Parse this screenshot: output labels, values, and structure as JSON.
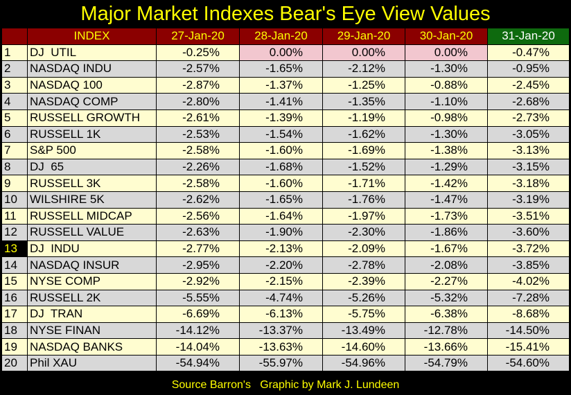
{
  "title": "Major Market Indexes Bear's Eye View Values",
  "footer": "Source Barron's   Graphic by Mark J. Lundeen",
  "colors": {
    "background": "#000000",
    "header_bg": "#8b0000",
    "header_text": "#ffff00",
    "highlight_header_bg": "#0e6a0e",
    "odd_row": "#fffdd0",
    "even_row": "#d8d8d8",
    "zero_cell": "#f2c7cf"
  },
  "chart_data": {
    "type": "table",
    "title": "Major Market Indexes Bear's Eye View Values",
    "columns": [
      "",
      "INDEX",
      "27-Jan-20",
      "28-Jan-20",
      "29-Jan-20",
      "30-Jan-20",
      "31-Jan-20"
    ],
    "highlighted_column": "31-Jan-20",
    "highlighted_rank": "13",
    "rows": [
      {
        "rank": "1",
        "index": "DJ  UTIL",
        "values": [
          "-0.25%",
          "0.00%",
          "0.00%",
          "0.00%",
          "-0.47%"
        ]
      },
      {
        "rank": "2",
        "index": "NASDAQ INDU",
        "values": [
          "-2.57%",
          "-1.65%",
          "-2.12%",
          "-1.30%",
          "-0.95%"
        ]
      },
      {
        "rank": "3",
        "index": "NASDAQ 100",
        "values": [
          "-2.87%",
          "-1.37%",
          "-1.25%",
          "-0.88%",
          "-2.45%"
        ]
      },
      {
        "rank": "4",
        "index": "NASDAQ COMP",
        "values": [
          "-2.80%",
          "-1.41%",
          "-1.35%",
          "-1.10%",
          "-2.68%"
        ]
      },
      {
        "rank": "5",
        "index": "RUSSELL GROWTH",
        "values": [
          "-2.61%",
          "-1.39%",
          "-1.19%",
          "-0.98%",
          "-2.73%"
        ]
      },
      {
        "rank": "6",
        "index": "RUSSELL 1K",
        "values": [
          "-2.53%",
          "-1.54%",
          "-1.62%",
          "-1.30%",
          "-3.05%"
        ]
      },
      {
        "rank": "7",
        "index": "S&P 500",
        "values": [
          "-2.58%",
          "-1.60%",
          "-1.69%",
          "-1.38%",
          "-3.13%"
        ]
      },
      {
        "rank": "8",
        "index": "DJ  65",
        "values": [
          "-2.26%",
          "-1.68%",
          "-1.52%",
          "-1.29%",
          "-3.15%"
        ]
      },
      {
        "rank": "9",
        "index": "RUSSELL 3K",
        "values": [
          "-2.58%",
          "-1.60%",
          "-1.71%",
          "-1.42%",
          "-3.18%"
        ]
      },
      {
        "rank": "10",
        "index": "WILSHIRE 5K",
        "values": [
          "-2.62%",
          "-1.65%",
          "-1.76%",
          "-1.47%",
          "-3.19%"
        ]
      },
      {
        "rank": "11",
        "index": "RUSSELL MIDCAP",
        "values": [
          "-2.56%",
          "-1.64%",
          "-1.97%",
          "-1.73%",
          "-3.51%"
        ]
      },
      {
        "rank": "12",
        "index": "RUSSELL VALUE",
        "values": [
          "-2.63%",
          "-1.90%",
          "-2.30%",
          "-1.86%",
          "-3.60%"
        ]
      },
      {
        "rank": "13",
        "index": "DJ  INDU",
        "values": [
          "-2.77%",
          "-2.13%",
          "-2.09%",
          "-1.67%",
          "-3.72%"
        ]
      },
      {
        "rank": "14",
        "index": "NASDAQ INSUR",
        "values": [
          "-2.95%",
          "-2.20%",
          "-2.78%",
          "-2.08%",
          "-3.85%"
        ]
      },
      {
        "rank": "15",
        "index": "NYSE COMP",
        "values": [
          "-2.92%",
          "-2.15%",
          "-2.39%",
          "-2.27%",
          "-4.02%"
        ]
      },
      {
        "rank": "16",
        "index": "RUSSELL 2K",
        "values": [
          "-5.55%",
          "-4.74%",
          "-5.26%",
          "-5.32%",
          "-7.28%"
        ]
      },
      {
        "rank": "17",
        "index": "DJ  TRAN",
        "values": [
          "-6.69%",
          "-6.13%",
          "-5.75%",
          "-6.38%",
          "-8.68%"
        ]
      },
      {
        "rank": "18",
        "index": "NYSE FINAN",
        "values": [
          "-14.12%",
          "-13.37%",
          "-13.49%",
          "-12.78%",
          "-14.50%"
        ]
      },
      {
        "rank": "19",
        "index": "NASDAQ BANKS",
        "values": [
          "-14.04%",
          "-13.63%",
          "-14.60%",
          "-13.66%",
          "-15.41%"
        ]
      },
      {
        "rank": "20",
        "index": "Phil XAU",
        "values": [
          "-54.94%",
          "-55.97%",
          "-54.96%",
          "-54.79%",
          "-54.60%"
        ]
      }
    ]
  }
}
